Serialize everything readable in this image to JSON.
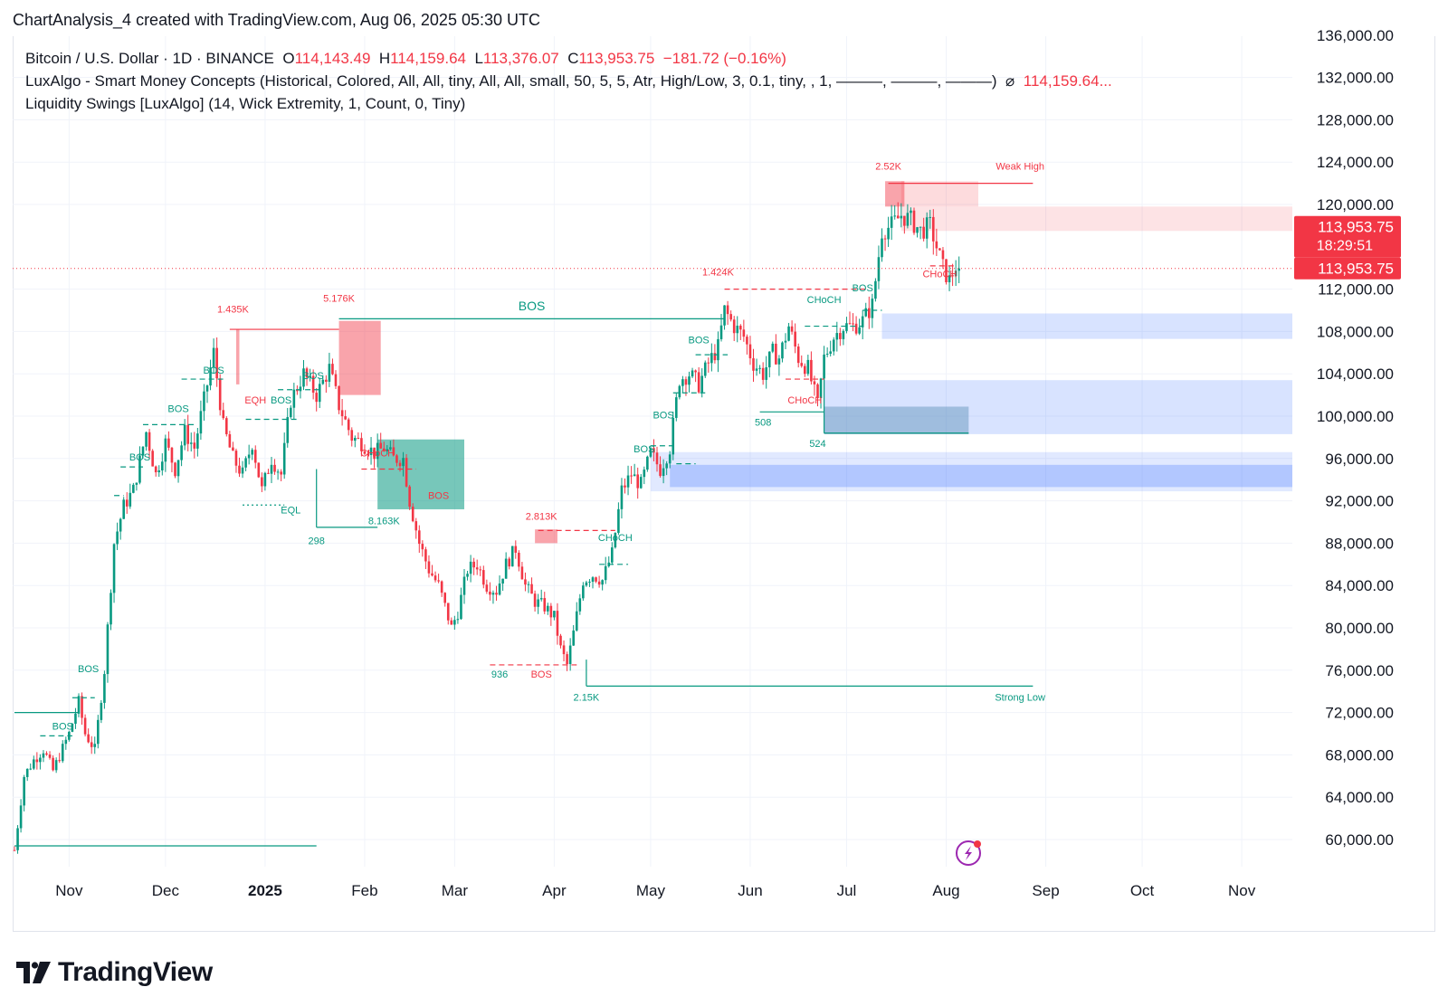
{
  "caption": "ChartAnalysis_4 created with TradingView.com, Aug 06, 2025 05:30 UTC",
  "legend": {
    "symbol": "Bitcoin / U.S. Dollar · 1D · BINANCE",
    "o_label": "O",
    "o_value": "114,143.49",
    "h_label": "H",
    "h_value": "114,159.64",
    "l_label": "L",
    "l_value": "113,376.07",
    "c_label": "C",
    "c_value": "113,953.75",
    "change": "−181.72 (−0.16%)",
    "indicator1": "LuxAlgo - Smart Money Concepts (Historical, Colored, All, All, tiny, All, All, small, 50, 5, 5, Atr, High/Low, 3, 0.1, tiny, , 1, ———, ———, ———)",
    "indicator1_icon": "⌀",
    "indicator1_value": "114,159.64...",
    "indicator2": "Liquidity Swings [LuxAlgo] (14, Wick Extremity, 1, Count, 0, Tiny)"
  },
  "price_tags": {
    "last": "113,953.75",
    "countdown": "18:29:51",
    "indicator": "113,953.75"
  },
  "logo": "TradingView",
  "colors": {
    "up": "#089981",
    "down": "#f23645",
    "bull_zone": "#2962ff",
    "bear_zone": "#f23645",
    "grid": "#f0f3fa",
    "text": "#131722",
    "axis_text": "#131722"
  },
  "chart_data": {
    "type": "candlestick",
    "title": "Bitcoin / U.S. Dollar · 1D · BINANCE",
    "ylim": [
      57000,
      137000
    ],
    "y_ticks": [
      60000,
      64000,
      68000,
      72000,
      76000,
      80000,
      84000,
      88000,
      92000,
      96000,
      100000,
      104000,
      108000,
      112000,
      120000,
      124000,
      128000,
      132000,
      136000
    ],
    "y_tick_labels": [
      "60,000.00",
      "64,000.00",
      "68,000.00",
      "72,000.00",
      "76,000.00",
      "80,000.00",
      "84,000.00",
      "88,000.00",
      "92,000.00",
      "96,000.00",
      "100,000.00",
      "104,000.00",
      "108,000.00",
      "112,000.00",
      "120,000.00",
      "124,000.00",
      "128,000.00",
      "132,000.00",
      "136,000.00"
    ],
    "x_ticks": [
      {
        "label": "Nov",
        "day": 17
      },
      {
        "label": "Dec",
        "day": 47
      },
      {
        "label": "2025",
        "day": 78
      },
      {
        "label": "Feb",
        "day": 109
      },
      {
        "label": "Mar",
        "day": 137
      },
      {
        "label": "Apr",
        "day": 168
      },
      {
        "label": "May",
        "day": 198
      },
      {
        "label": "Jun",
        "day": 229
      },
      {
        "label": "Jul",
        "day": 259
      },
      {
        "label": "Aug",
        "day": 290
      },
      {
        "label": "Sep",
        "day": 321
      },
      {
        "label": "Oct",
        "day": 351
      },
      {
        "label": "Nov",
        "day": 382
      }
    ],
    "last_price": 113953.75,
    "price_path": [
      [
        0,
        59000
      ],
      [
        3,
        66000
      ],
      [
        6,
        67500
      ],
      [
        9,
        68500
      ],
      [
        12,
        66500
      ],
      [
        17,
        70000
      ],
      [
        20,
        73000
      ],
      [
        22,
        70000
      ],
      [
        25,
        68500
      ],
      [
        28,
        76000
      ],
      [
        31,
        88000
      ],
      [
        34,
        91500
      ],
      [
        37,
        93000
      ],
      [
        41,
        98500
      ],
      [
        44,
        94500
      ],
      [
        47,
        97500
      ],
      [
        50,
        95000
      ],
      [
        53,
        98500
      ],
      [
        56,
        97000
      ],
      [
        59,
        101500
      ],
      [
        62,
        106000
      ],
      [
        65,
        99000
      ],
      [
        68,
        96000
      ],
      [
        71,
        94500
      ],
      [
        74,
        97500
      ],
      [
        77,
        93000
      ],
      [
        80,
        96000
      ],
      [
        83,
        94500
      ],
      [
        86,
        101500
      ],
      [
        90,
        104000
      ],
      [
        94,
        102000
      ],
      [
        98,
        104500
      ],
      [
        101,
        101000
      ],
      [
        105,
        98000
      ],
      [
        108,
        97500
      ],
      [
        112,
        96500
      ],
      [
        115,
        97000
      ],
      [
        118,
        96000
      ],
      [
        121,
        96000
      ],
      [
        123,
        92000
      ],
      [
        126,
        88000
      ],
      [
        129,
        85500
      ],
      [
        132,
        84000
      ],
      [
        136,
        80000
      ],
      [
        138,
        81500
      ],
      [
        141,
        85500
      ],
      [
        144,
        86000
      ],
      [
        147,
        84000
      ],
      [
        150,
        83500
      ],
      [
        153,
        86000
      ],
      [
        156,
        87500
      ],
      [
        159,
        84000
      ],
      [
        162,
        82500
      ],
      [
        165,
        82000
      ],
      [
        168,
        81000
      ],
      [
        170,
        78000
      ],
      [
        172,
        76500
      ],
      [
        174,
        79500
      ],
      [
        177,
        84500
      ],
      [
        180,
        85000
      ],
      [
        183,
        84500
      ],
      [
        186,
        87000
      ],
      [
        189,
        93000
      ],
      [
        192,
        94500
      ],
      [
        195,
        93500
      ],
      [
        198,
        96500
      ],
      [
        201,
        95000
      ],
      [
        204,
        97000
      ],
      [
        207,
        103500
      ],
      [
        210,
        104000
      ],
      [
        213,
        103000
      ],
      [
        216,
        105000
      ],
      [
        219,
        106500
      ],
      [
        221,
        110000
      ],
      [
        224,
        108500
      ],
      [
        227,
        107500
      ],
      [
        230,
        105000
      ],
      [
        233,
        104000
      ],
      [
        236,
        106000
      ],
      [
        238,
        105500
      ],
      [
        241,
        108500
      ],
      [
        244,
        105500
      ],
      [
        247,
        104500
      ],
      [
        250,
        101000
      ],
      [
        252,
        105500
      ],
      [
        255,
        107500
      ],
      [
        258,
        108500
      ],
      [
        261,
        108500
      ],
      [
        264,
        109000
      ],
      [
        267,
        110500
      ],
      [
        270,
        117500
      ],
      [
        273,
        118000
      ],
      [
        276,
        119000
      ],
      [
        279,
        118500
      ],
      [
        282,
        117500
      ],
      [
        285,
        118000
      ],
      [
        287,
        116000
      ],
      [
        289,
        114000
      ],
      [
        291,
        112800
      ],
      [
        293,
        114200
      ],
      [
        294,
        113954
      ]
    ],
    "annotations": [
      {
        "text": "BOS",
        "role": "structure"
      },
      {
        "text": "EQH",
        "role": "structure"
      },
      {
        "text": "EQL",
        "role": "structure"
      },
      {
        "text": "CHoCH",
        "role": "structure"
      },
      {
        "text": "1.435K",
        "role": "liquidity"
      },
      {
        "text": "5.176K",
        "role": "liquidity"
      },
      {
        "text": "298",
        "role": "liquidity"
      },
      {
        "text": "8.163K",
        "role": "liquidity"
      },
      {
        "text": "2.813K",
        "role": "liquidity"
      },
      {
        "text": "936",
        "role": "liquidity"
      },
      {
        "text": "2.15K",
        "role": "liquidity"
      },
      {
        "text": "1.424K",
        "role": "liquidity"
      },
      {
        "text": "508",
        "role": "liquidity"
      },
      {
        "text": "524",
        "role": "liquidity"
      },
      {
        "text": "2.52K",
        "role": "liquidity"
      },
      {
        "text": "Weak High",
        "role": "level"
      },
      {
        "text": "Strong Low",
        "role": "level"
      }
    ]
  }
}
